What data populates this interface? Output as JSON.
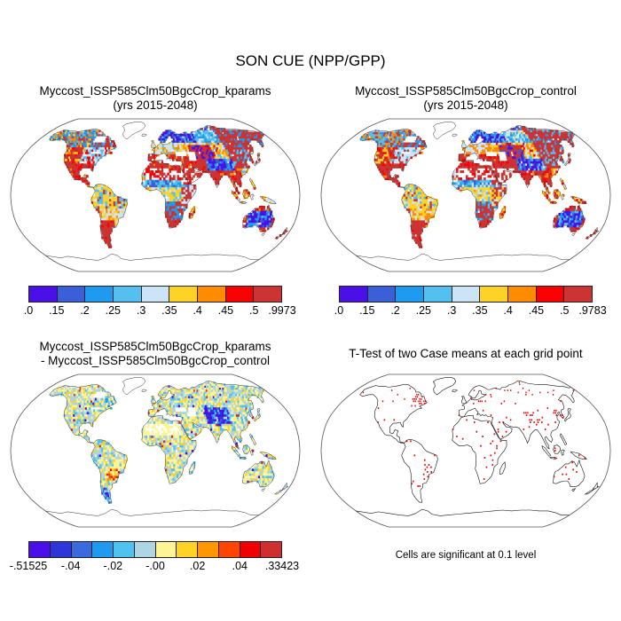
{
  "title": "SON CUE (NPP/GPP)",
  "panels": [
    {
      "id": "kparams",
      "title_line1": "Myccost_ISSP585Clm50BgcCrop_kparams",
      "title_line2": "(yrs 2015-2048)",
      "colorbar": {
        "colors": [
          "#4b0fe8",
          "#3a5fd9",
          "#1e9bf0",
          "#54c0f0",
          "#cce5f6",
          "#ffd226",
          "#ff8c00",
          "#fa0000",
          "#cc3333"
        ],
        "labels": [
          ".0",
          ".15",
          ".2",
          ".25",
          ".3",
          ".35",
          ".4",
          ".45",
          ".5",
          ".9973"
        ],
        "label_step": 1
      }
    },
    {
      "id": "control",
      "title_line1": "Myccost_ISSP585Clm50BgcCrop_control",
      "title_line2": "(yrs 2015-2048)",
      "colorbar": {
        "colors": [
          "#4b0fe8",
          "#3a5fd9",
          "#1e9bf0",
          "#54c0f0",
          "#cce5f6",
          "#ffd226",
          "#ff8c00",
          "#fa0000",
          "#cc3333"
        ],
        "labels": [
          ".0",
          ".15",
          ".2",
          ".25",
          ".3",
          ".35",
          ".4",
          ".45",
          ".5",
          ".9783"
        ],
        "label_step": 1
      }
    },
    {
      "id": "difference",
      "title_line1": "Myccost_ISSP585Clm50BgcCrop_kparams",
      "title_line2": "- Myccost_ISSP585Clm50BgcCrop_control",
      "colorbar": {
        "colors": [
          "#4b0fe8",
          "#2e35d9",
          "#3a6bde",
          "#1e9bf0",
          "#4fc3ef",
          "#afd4e4",
          "#fdf493",
          "#ffd226",
          "#ff9800",
          "#ff4500",
          "#f00000",
          "#cf2f2f"
        ],
        "labels": [
          "-.51525",
          "-.04",
          "-.02",
          "-.00",
          ".02",
          ".04",
          ".33423"
        ],
        "label_step": 2
      }
    },
    {
      "id": "ttest",
      "title_line1": "T-Test of two Case means at each grid point",
      "title_line2": "",
      "caption": "Cells are significant at 0.1 level",
      "dot_color": "#e60000"
    }
  ],
  "chart_data": [
    {
      "type": "heatmap",
      "panel": "top-left",
      "title": "Myccost_ISSP585Clm50BgcCrop_kparams",
      "subtitle": "(yrs 2015-2048)",
      "variable": "SON CUE (NPP/GPP)",
      "projection": "Robinson world map, pixelated grid cells over land",
      "bin_edges": [
        0,
        0.15,
        0.2,
        0.25,
        0.3,
        0.35,
        0.4,
        0.45,
        0.5,
        0.9973
      ],
      "palette": [
        "#4b0fe8",
        "#3a5fd9",
        "#1e9bf0",
        "#54c0f0",
        "#cce5f6",
        "#ffd226",
        "#ff8c00",
        "#fa0000",
        "#cc3333"
      ],
      "value_range": [
        0,
        0.9973
      ],
      "legend_position": "bottom",
      "pattern_notes": "Blues (low CUE) over Scandinavia/NW Russia, Tibetan Plateau and interior Australia; reds (high CUE) over eastern Siberia, Mediterranean, India, Mexico, southern South America; Sahara and Arabia mostly blank with red fringe; Amazon and Congo gold/orange with light-blue patches; Antarctica and Greenland unfilled"
    },
    {
      "type": "heatmap",
      "panel": "top-right",
      "title": "Myccost_ISSP585Clm50BgcCrop_control",
      "subtitle": "(yrs 2015-2048)",
      "variable": "SON CUE (NPP/GPP)",
      "projection": "Robinson world map, pixelated grid cells over land",
      "bin_edges": [
        0,
        0.15,
        0.2,
        0.25,
        0.3,
        0.35,
        0.4,
        0.45,
        0.5,
        0.9783
      ],
      "palette": [
        "#4b0fe8",
        "#3a5fd9",
        "#1e9bf0",
        "#54c0f0",
        "#cce5f6",
        "#ffd226",
        "#ff8c00",
        "#fa0000",
        "#cc3333"
      ],
      "value_range": [
        0,
        0.9783
      ],
      "legend_position": "bottom",
      "pattern_notes": "Very similar spatial pattern to kparams case, slightly redder overall"
    },
    {
      "type": "heatmap",
      "panel": "bottom-left",
      "title": "Myccost_ISSP585Clm50BgcCrop_kparams - Myccost_ISSP585Clm50BgcCrop_control",
      "variable": "difference in SON CUE (NPP/GPP)",
      "projection": "Robinson world map, pixelated grid cells over land",
      "bin_edges": [
        -0.51525,
        -0.05,
        -0.04,
        -0.03,
        -0.02,
        -0.01,
        0,
        0.01,
        0.02,
        0.03,
        0.04,
        0.05,
        0.33423
      ],
      "palette": [
        "#4b0fe8",
        "#2e35d9",
        "#3a6bde",
        "#1e9bf0",
        "#4fc3ef",
        "#afd4e4",
        "#fdf493",
        "#ffd226",
        "#ff9800",
        "#ff4500",
        "#f00000",
        "#cf2f2f"
      ],
      "value_range": [
        -0.51525,
        0.33423
      ],
      "legend_position": "bottom",
      "pattern_notes": "Mostly near-zero mottle of pale yellow and pale blue; stronger blue (negative) patch over Tibet/western China and eastern North America; orange (positive) patch over southern Brazil; scattered red/orange and deep blue dots elsewhere; Sahara largely blank"
    },
    {
      "type": "heatmap",
      "panel": "bottom-right",
      "title": "T-Test of two Case means at each grid point",
      "note": "Cells are significant at 0.1 level",
      "significance_color": "#e60000",
      "projection": "Robinson world map, white land with black coastlines",
      "significant_regions": [
        "eastern Canada (Quebec/Labrador)",
        "Tibetan Plateau and western China",
        "northeast China / Korea / Japan",
        "scattered Europe and western Russia",
        "southern Brazil",
        "Patagonia",
        "East Africa",
        "Indonesia / New Guinea",
        "scattered western North America"
      ]
    }
  ]
}
